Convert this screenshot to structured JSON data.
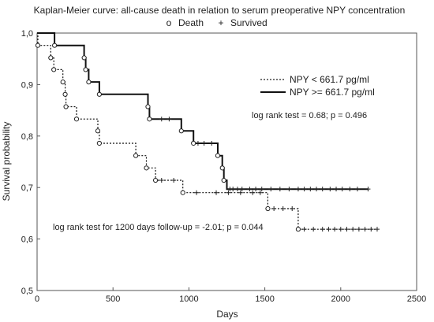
{
  "chart_data": {
    "type": "line",
    "title": "Kaplan-Meier curve: all-cause death in relation to serum preoperative NPY concentration",
    "marker_legend": {
      "death_symbol": "o",
      "death_label": "Death",
      "survived_symbol": "+",
      "survived_label": "Survived"
    },
    "xlabel": "Days",
    "ylabel": "Survival probability",
    "xlim": [
      0,
      2500
    ],
    "ylim": [
      0.5,
      1.0
    ],
    "x_ticks": [
      0,
      500,
      1000,
      1500,
      2000,
      2500
    ],
    "x_tick_labels": [
      "0",
      "500",
      "1000",
      "1500",
      "2000",
      "2500"
    ],
    "y_ticks": [
      0.5,
      0.6,
      0.7,
      0.8,
      0.9,
      1.0
    ],
    "y_tick_labels": [
      "0,5",
      "0,6",
      "0,7",
      "0,8",
      "0,9",
      "1,0"
    ],
    "grid": false,
    "legend_position": "top-right",
    "series": [
      {
        "name": "NPY < 661.7 pg/ml",
        "style": "dotted",
        "steps": [
          [
            0,
            1.0
          ],
          [
            5,
            0.976
          ],
          [
            90,
            0.952
          ],
          [
            110,
            0.929
          ],
          [
            170,
            0.905
          ],
          [
            185,
            0.881
          ],
          [
            190,
            0.857
          ],
          [
            260,
            0.833
          ],
          [
            400,
            0.81
          ],
          [
            410,
            0.786
          ],
          [
            650,
            0.762
          ],
          [
            720,
            0.738
          ],
          [
            780,
            0.714
          ],
          [
            960,
            0.69
          ],
          [
            1520,
            0.659
          ],
          [
            1720,
            0.619
          ],
          [
            2240,
            0.619
          ]
        ],
        "deaths": [
          [
            5,
            0.976
          ],
          [
            90,
            0.952
          ],
          [
            110,
            0.929
          ],
          [
            170,
            0.905
          ],
          [
            185,
            0.881
          ],
          [
            190,
            0.857
          ],
          [
            260,
            0.833
          ],
          [
            400,
            0.81
          ],
          [
            410,
            0.786
          ],
          [
            650,
            0.762
          ],
          [
            720,
            0.738
          ],
          [
            780,
            0.714
          ],
          [
            960,
            0.69
          ],
          [
            1520,
            0.659
          ],
          [
            1720,
            0.619
          ]
        ],
        "censored": [
          [
            820,
            0.714
          ],
          [
            900,
            0.714
          ],
          [
            1050,
            0.69
          ],
          [
            1180,
            0.69
          ],
          [
            1260,
            0.69
          ],
          [
            1340,
            0.69
          ],
          [
            1420,
            0.69
          ],
          [
            1470,
            0.69
          ],
          [
            1560,
            0.659
          ],
          [
            1620,
            0.659
          ],
          [
            1680,
            0.659
          ],
          [
            1760,
            0.619
          ],
          [
            1820,
            0.619
          ],
          [
            1880,
            0.619
          ],
          [
            1920,
            0.619
          ],
          [
            1960,
            0.619
          ],
          [
            2000,
            0.619
          ],
          [
            2040,
            0.619
          ],
          [
            2080,
            0.619
          ],
          [
            2120,
            0.619
          ],
          [
            2160,
            0.619
          ],
          [
            2200,
            0.619
          ],
          [
            2240,
            0.619
          ]
        ]
      },
      {
        "name": "NPY >= 661.7 pg/ml",
        "style": "solid",
        "steps": [
          [
            0,
            1.0
          ],
          [
            115,
            0.976
          ],
          [
            310,
            0.952
          ],
          [
            320,
            0.929
          ],
          [
            340,
            0.905
          ],
          [
            410,
            0.881
          ],
          [
            730,
            0.857
          ],
          [
            740,
            0.833
          ],
          [
            950,
            0.81
          ],
          [
            1030,
            0.786
          ],
          [
            1190,
            0.762
          ],
          [
            1220,
            0.738
          ],
          [
            1230,
            0.714
          ],
          [
            1250,
            0.697
          ],
          [
            2180,
            0.697
          ]
        ],
        "deaths": [
          [
            115,
            0.976
          ],
          [
            310,
            0.952
          ],
          [
            320,
            0.929
          ],
          [
            340,
            0.905
          ],
          [
            410,
            0.881
          ],
          [
            730,
            0.857
          ],
          [
            740,
            0.833
          ],
          [
            950,
            0.81
          ],
          [
            1030,
            0.786
          ],
          [
            1190,
            0.762
          ],
          [
            1220,
            0.738
          ],
          [
            1230,
            0.714
          ]
        ],
        "censored": [
          [
            820,
            0.833
          ],
          [
            870,
            0.833
          ],
          [
            1060,
            0.786
          ],
          [
            1100,
            0.786
          ],
          [
            1150,
            0.786
          ],
          [
            1270,
            0.697
          ],
          [
            1290,
            0.697
          ],
          [
            1320,
            0.697
          ],
          [
            1350,
            0.697
          ],
          [
            1400,
            0.697
          ],
          [
            1440,
            0.697
          ],
          [
            1480,
            0.697
          ],
          [
            1540,
            0.697
          ],
          [
            1600,
            0.697
          ],
          [
            1660,
            0.697
          ],
          [
            1720,
            0.697
          ],
          [
            1760,
            0.697
          ],
          [
            1800,
            0.697
          ],
          [
            1840,
            0.697
          ],
          [
            1880,
            0.697
          ],
          [
            1930,
            0.697
          ],
          [
            1970,
            0.697
          ],
          [
            2010,
            0.697
          ],
          [
            2060,
            0.697
          ],
          [
            2110,
            0.697
          ],
          [
            2180,
            0.697
          ]
        ]
      }
    ],
    "annotations": {
      "log_rank_test": "log rank test = 0.68; p = 0.496",
      "log_rank_1200": "log rank test for 1200 days follow-up = -2.01; p = 0.044"
    }
  }
}
